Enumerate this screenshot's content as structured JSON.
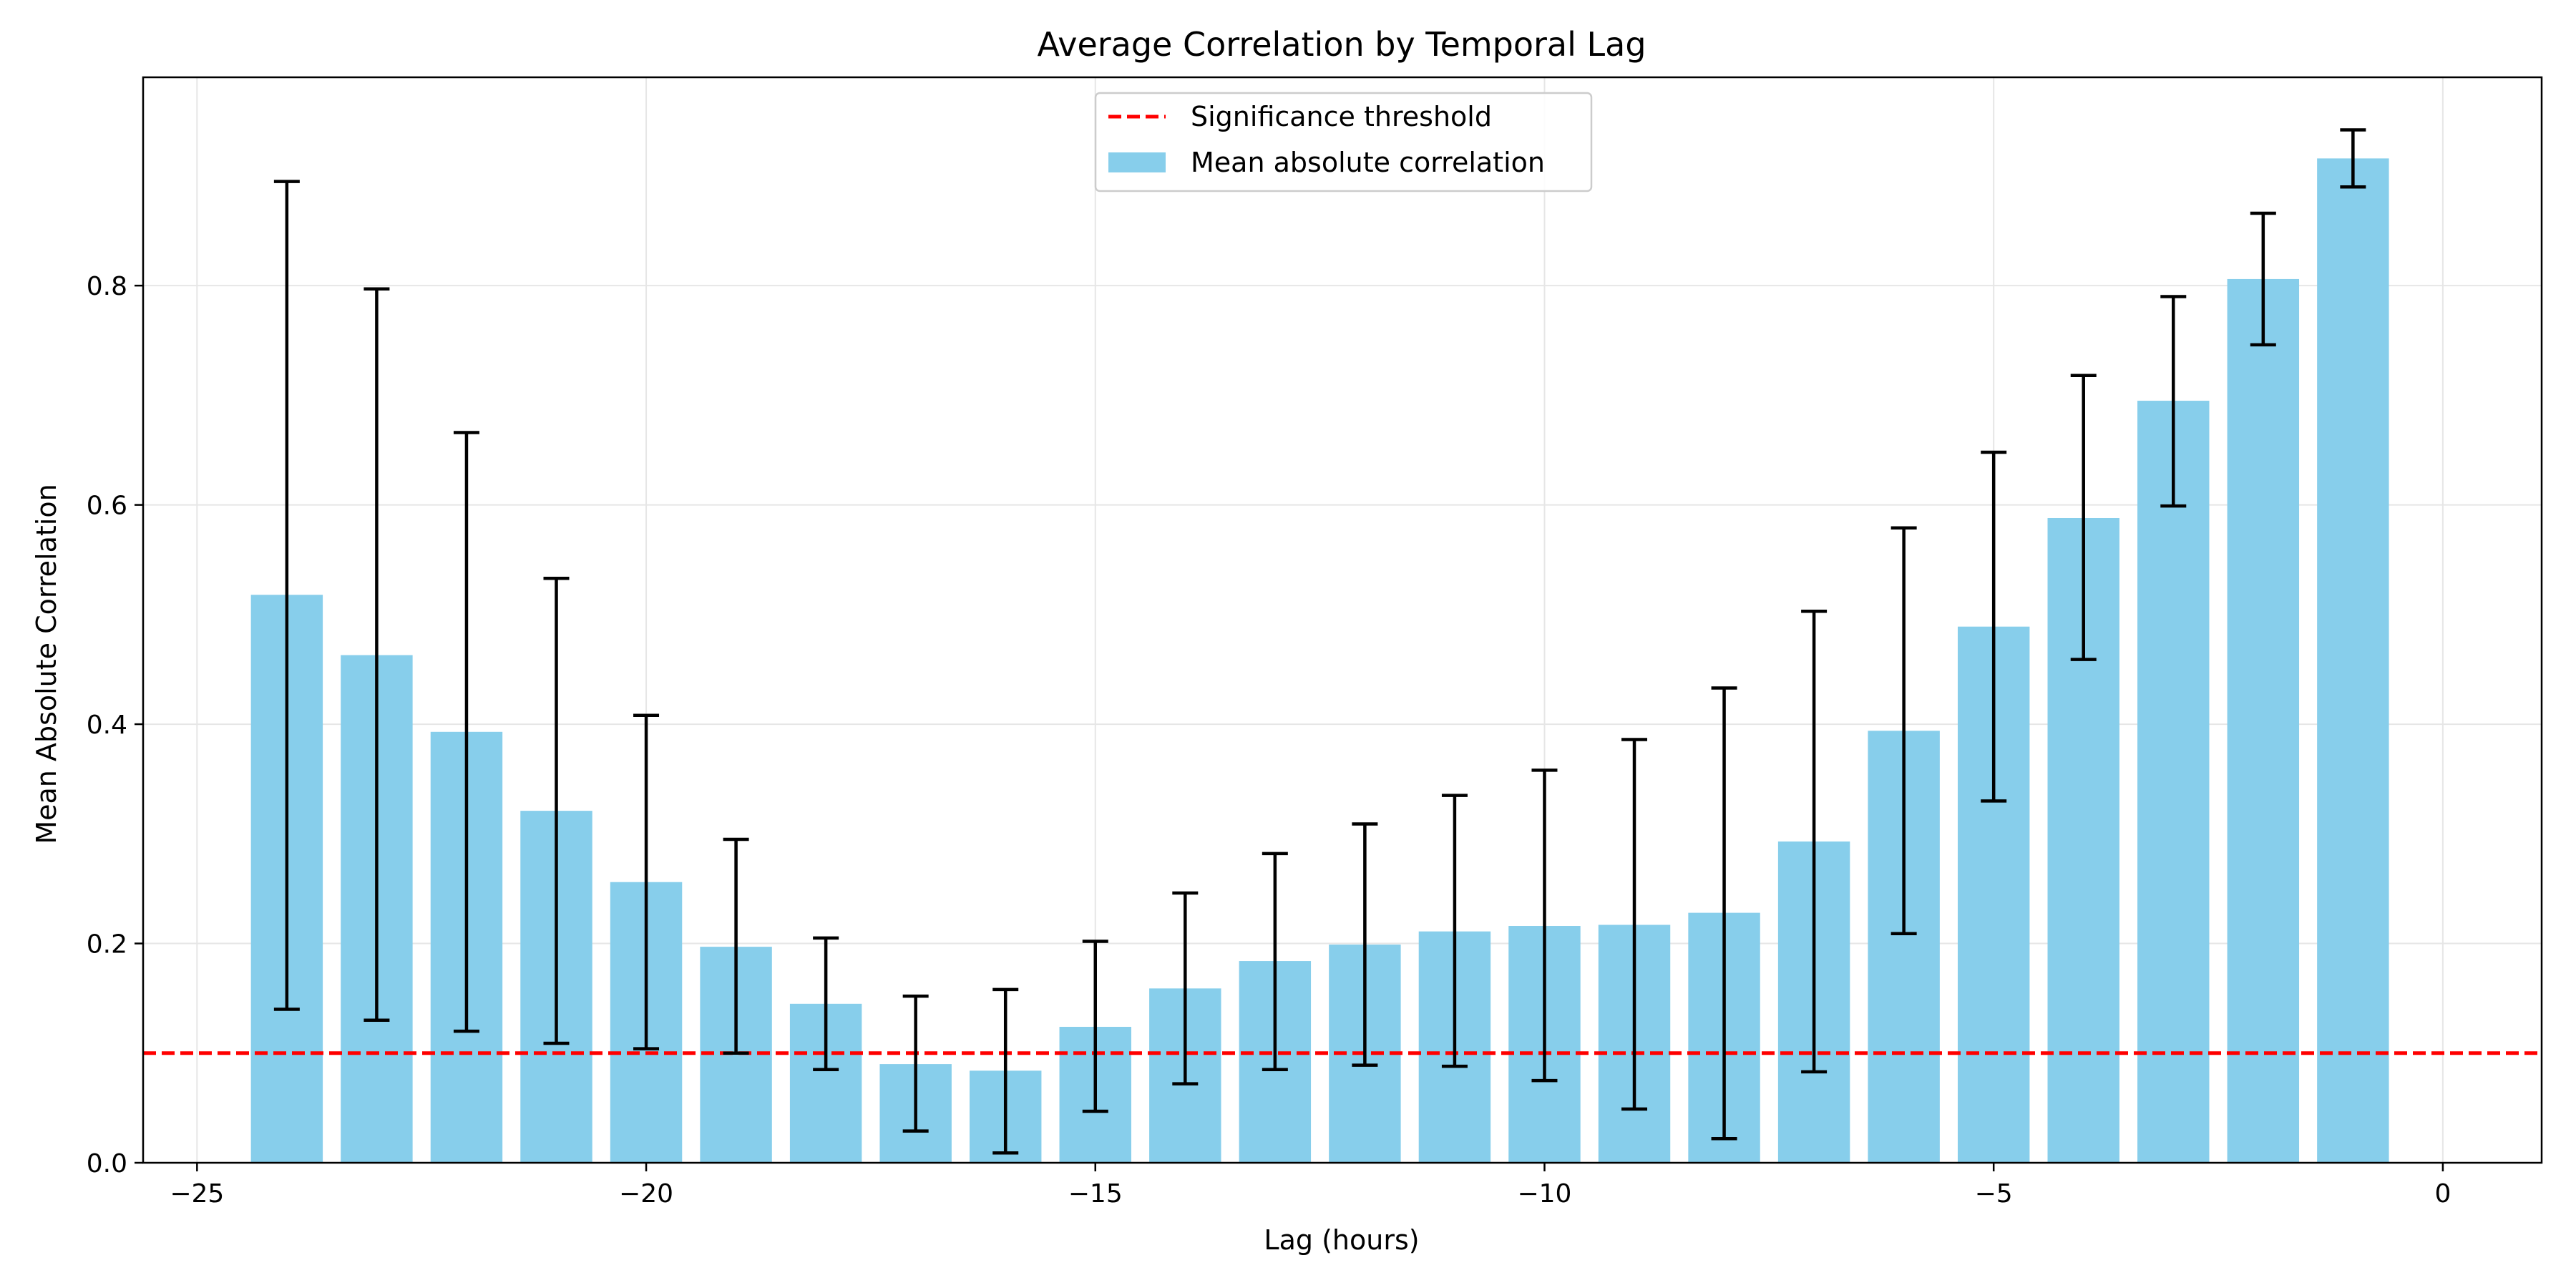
{
  "chart_data": {
    "type": "bar",
    "title": "Average Correlation by Temporal Lag",
    "xlabel": "Lag (hours)",
    "ylabel": "Mean Absolute Correlation",
    "xlim": [
      -25.6,
      1.1
    ],
    "ylim": [
      0,
      0.99
    ],
    "xticks": [
      -25,
      -20,
      -15,
      -10,
      -5,
      0
    ],
    "xtick_labels": [
      "−25",
      "−20",
      "−15",
      "−10",
      "−5",
      "0"
    ],
    "yticks": [
      0.0,
      0.2,
      0.4,
      0.6,
      0.8
    ],
    "ytick_labels": [
      "0.0",
      "0.2",
      "0.4",
      "0.6",
      "0.8"
    ],
    "grid": true,
    "legend_position": "upper-center",
    "bar_color": "#87ceeb",
    "threshold_color": "#ff0000",
    "bar_width": 0.8,
    "threshold": 0.1,
    "x": [
      -24,
      -23,
      -22,
      -21,
      -20,
      -19,
      -18,
      -17,
      -16,
      -15,
      -14,
      -13,
      -12,
      -11,
      -10,
      -9,
      -8,
      -7,
      -6,
      -5,
      -4,
      -3,
      -2,
      -1
    ],
    "values": [
      0.518,
      0.463,
      0.393,
      0.321,
      0.256,
      0.197,
      0.145,
      0.09,
      0.084,
      0.124,
      0.159,
      0.184,
      0.199,
      0.211,
      0.216,
      0.217,
      0.228,
      0.293,
      0.394,
      0.489,
      0.588,
      0.695,
      0.806,
      0.916
    ],
    "error_low": [
      0.14,
      0.13,
      0.12,
      0.109,
      0.104,
      0.1,
      0.085,
      0.029,
      0.009,
      0.047,
      0.072,
      0.085,
      0.089,
      0.088,
      0.075,
      0.049,
      0.022,
      0.083,
      0.209,
      0.33,
      0.459,
      0.599,
      0.746,
      0.89
    ],
    "error_high": [
      0.895,
      0.797,
      0.666,
      0.533,
      0.408,
      0.295,
      0.205,
      0.152,
      0.158,
      0.202,
      0.246,
      0.282,
      0.309,
      0.335,
      0.358,
      0.386,
      0.433,
      0.503,
      0.579,
      0.648,
      0.718,
      0.79,
      0.866,
      0.942
    ],
    "legend": [
      {
        "label": "Significance threshold",
        "kind": "dashed-line"
      },
      {
        "label": "Mean absolute correlation",
        "kind": "bar"
      }
    ]
  }
}
